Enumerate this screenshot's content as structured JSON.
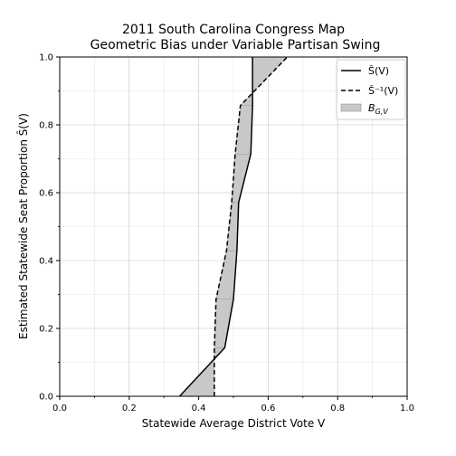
{
  "chart_data": {
    "type": "line",
    "title": "2011 South Carolina Congress Map",
    "subtitle": "Geometric Bias under Variable Partisan Swing",
    "xlabel": "Statewide Average District Vote V",
    "ylabel": "Estimated Statewide Seat Proportion Ŝ(V)",
    "xlim": [
      0.0,
      1.0
    ],
    "ylim": [
      0.0,
      1.0
    ],
    "xticks": [
      "0.0",
      "0.2",
      "0.4",
      "0.6",
      "0.8",
      "1.0"
    ],
    "yticks": [
      "0.0",
      "0.2",
      "0.4",
      "0.6",
      "0.8",
      "1.0"
    ],
    "grid": true,
    "legend_position": "top-right",
    "series": [
      {
        "name": "Ŝ(V)",
        "style": "solid",
        "color": "#000000",
        "points": [
          [
            0.345,
            0.0
          ],
          [
            0.475,
            0.143
          ],
          [
            0.5,
            0.286
          ],
          [
            0.51,
            0.429
          ],
          [
            0.515,
            0.571
          ],
          [
            0.55,
            0.714
          ],
          [
            0.555,
            0.857
          ],
          [
            0.555,
            1.0
          ]
        ]
      },
      {
        "name": "Ŝ⁻¹(V)",
        "style": "dashed",
        "color": "#000000",
        "points": [
          [
            0.445,
            0.0
          ],
          [
            0.445,
            0.143
          ],
          [
            0.45,
            0.286
          ],
          [
            0.48,
            0.429
          ],
          [
            0.495,
            0.571
          ],
          [
            0.505,
            0.714
          ],
          [
            0.52,
            0.857
          ],
          [
            0.655,
            1.0
          ]
        ]
      }
    ],
    "fill": {
      "name": "B_{G,V}",
      "label_main": "B",
      "label_sub": "G,V",
      "color": "#c8c8c8",
      "edge": "#909090"
    }
  }
}
